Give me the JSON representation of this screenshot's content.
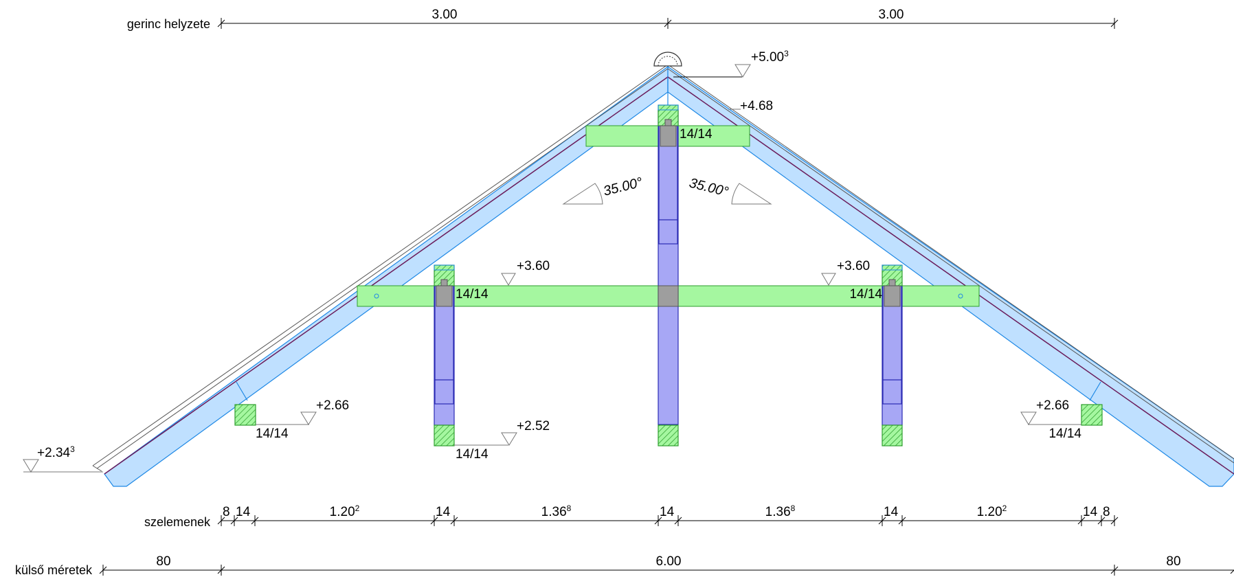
{
  "dimension_rows": {
    "ridge": {
      "label": "gerinc helyzete",
      "left": "3.00",
      "right": "3.00"
    },
    "elements": {
      "label": "szelemenek",
      "segments": [
        {
          "value": "8",
          "sup": ""
        },
        {
          "value": "14",
          "sup": ""
        },
        {
          "value": "1.20",
          "sup": "2"
        },
        {
          "value": "14",
          "sup": ""
        },
        {
          "value": "1.36",
          "sup": "8"
        },
        {
          "value": "14",
          "sup": ""
        },
        {
          "value": "1.36",
          "sup": "8"
        },
        {
          "value": "14",
          "sup": ""
        },
        {
          "value": "1.20",
          "sup": "2"
        },
        {
          "value": "14",
          "sup": ""
        },
        {
          "value": "8",
          "sup": ""
        }
      ]
    },
    "outer": {
      "label": "külső méretek",
      "left": "80",
      "middle": "6.00",
      "right": "80"
    }
  },
  "levels": {
    "top": {
      "value": "+5.00",
      "sup": "3"
    },
    "ridge_inner": {
      "value": "+4.68",
      "sup": ""
    },
    "collar_left": {
      "value": "+3.60",
      "sup": ""
    },
    "collar_right": {
      "value": "+3.60",
      "sup": ""
    },
    "purlin_left": {
      "value": "+2.66",
      "sup": ""
    },
    "purlin_right": {
      "value": "+2.66",
      "sup": ""
    },
    "post_base": {
      "value": "+2.52",
      "sup": ""
    },
    "eave": {
      "value": "+2.34",
      "sup": "3"
    }
  },
  "sections": {
    "top_beam": "14/14",
    "collar_left": "14/14",
    "collar_right": "14/14",
    "purlin_left": "14/14",
    "purlin_right": "14/14",
    "post_base_left": "14/14"
  },
  "angles": {
    "left": "35.00°",
    "right": "35.00°"
  },
  "colors": {
    "rafter_fill": "#bfe0ff",
    "rafter_stroke": "#1e88e5",
    "beam_fill": "#a5f7a0",
    "post_fill": "#a7a7f5",
    "hatch_green": "#2e9e2e"
  }
}
